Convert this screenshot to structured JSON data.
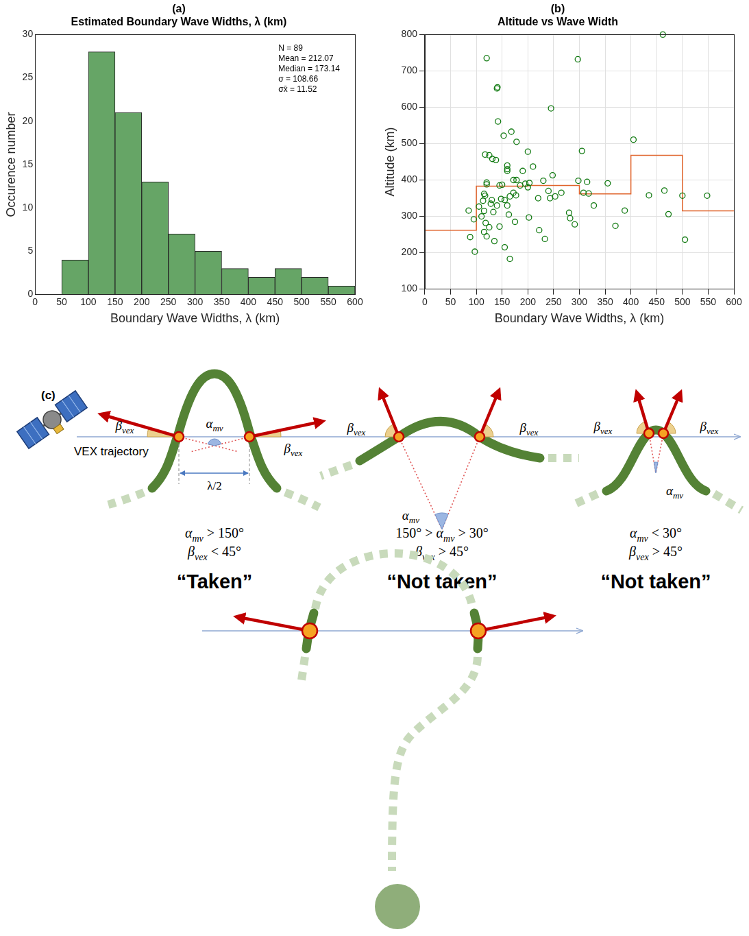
{
  "chart_data": [
    {
      "type": "histogram",
      "panel": "(a)",
      "title": "Estimated Boundary Wave Widths, λ (km)",
      "x_label": "Boundary Wave Widths, λ (km)",
      "y_label": "Occurence number",
      "bins": [
        50,
        100,
        150,
        200,
        250,
        300,
        350,
        400,
        450,
        500,
        550,
        600
      ],
      "values": [
        4,
        28,
        21,
        13,
        7,
        5,
        3,
        2,
        3,
        2,
        1
      ],
      "color": "#66a566",
      "xlim": [
        0,
        600
      ],
      "xticks": [
        0,
        50,
        100,
        150,
        200,
        250,
        300,
        350,
        400,
        450,
        500,
        550,
        600
      ],
      "ylim": [
        0,
        30
      ],
      "yticks": [
        0,
        5,
        10,
        15,
        20,
        25,
        30
      ],
      "grid": false,
      "annotations": [
        "N = 89",
        "Mean = 212.07",
        "Median = 173.14",
        "σ = 108.66",
        "σx̄ = 11.52"
      ]
    },
    {
      "type": "scatter",
      "panel": "(b)",
      "title": "Altitude vs Wave Width",
      "x_label": "Boundary Wave Widths, λ (km)",
      "y_label": "Altitude (km)",
      "xlim": [
        0,
        600
      ],
      "xticks": [
        0,
        50,
        100,
        150,
        200,
        250,
        300,
        350,
        400,
        450,
        500,
        550,
        600
      ],
      "ylim": [
        100,
        800
      ],
      "yticks": [
        100,
        200,
        300,
        400,
        500,
        600,
        700,
        800
      ],
      "grid": true,
      "series": [
        {
          "type": "scatter",
          "marker": "circle",
          "color": "#117a11",
          "x": [
            85,
            88,
            95,
            97,
            120,
            140,
            141,
            142,
            117,
            125,
            131,
            138,
            120,
            120,
            115,
            117,
            113,
            130,
            128,
            115,
            133,
            140,
            118,
            125,
            115,
            120,
            135,
            145,
            145,
            148,
            105,
            110,
            153,
            168,
            178,
            160,
            160,
            160,
            150,
            172,
            178,
            185,
            190,
            165,
            155,
            172,
            177,
            160,
            163,
            155,
            165,
            175,
            195,
            200,
            210,
            200,
            203,
            220,
            230,
            240,
            243,
            248,
            245,
            202,
            222,
            233,
            265,
            280,
            282,
            291,
            298,
            297,
            253,
            305,
            308,
            315,
            318,
            328,
            355,
            370,
            388,
            405,
            435,
            462,
            465,
            473,
            500,
            505,
            548
          ],
          "values": [
            316,
            243,
            292,
            203,
            735,
            652,
            655,
            561,
            470,
            468,
            458,
            455,
            393,
            388,
            362,
            357,
            343,
            345,
            335,
            315,
            312,
            330,
            282,
            270,
            257,
            245,
            232,
            272,
            385,
            348,
            327,
            300,
            522,
            533,
            505,
            440,
            430,
            425,
            387,
            400,
            400,
            385,
            425,
            355,
            345,
            365,
            358,
            330,
            305,
            215,
            183,
            285,
            390,
            478,
            437,
            380,
            392,
            350,
            398,
            370,
            350,
            413,
            597,
            297,
            262,
            238,
            365,
            310,
            295,
            278,
            398,
            732,
            355,
            480,
            365,
            395,
            363,
            330,
            391,
            274,
            316,
            511,
            358,
            800,
            371,
            306,
            357,
            236,
            357
          ]
        },
        {
          "type": "line",
          "line_style": "stepped",
          "color": "#e0642c",
          "bins": [
            0,
            100,
            200,
            300,
            400,
            500,
            600
          ],
          "values": [
            262,
            383,
            385,
            362,
            468,
            315
          ]
        }
      ]
    }
  ],
  "diagram": {
    "label": "(c)",
    "trajectory_label": "VEX trajectory",
    "beta": {
      "symbol": "β",
      "sub": "vex"
    },
    "alpha": {
      "symbol": "α",
      "sub": "mv"
    },
    "half_width_label": "λ/2",
    "cases": [
      {
        "conditions": [
          {
            "prefix": "",
            "symbol": "α",
            "sub": "mv",
            "suffix": " > 150°"
          },
          {
            "prefix": "",
            "symbol": "β",
            "sub": "vex",
            "suffix": " < 45°"
          }
        ],
        "verdict": "“Taken”"
      },
      {
        "conditions": [
          {
            "prefix": "150° > ",
            "symbol": "α",
            "sub": "mv",
            "suffix": " > 30°"
          },
          {
            "prefix": "",
            "symbol": "β",
            "sub": "vex",
            "suffix": " > 45°"
          }
        ],
        "verdict": "“Not taken”"
      },
      {
        "conditions": [
          {
            "prefix": "",
            "symbol": "α",
            "sub": "mv",
            "suffix": " < 30°"
          },
          {
            "prefix": "",
            "symbol": "β",
            "sub": "vex",
            "suffix": " > 45°"
          }
        ],
        "verdict": "“Not taken”"
      }
    ]
  }
}
